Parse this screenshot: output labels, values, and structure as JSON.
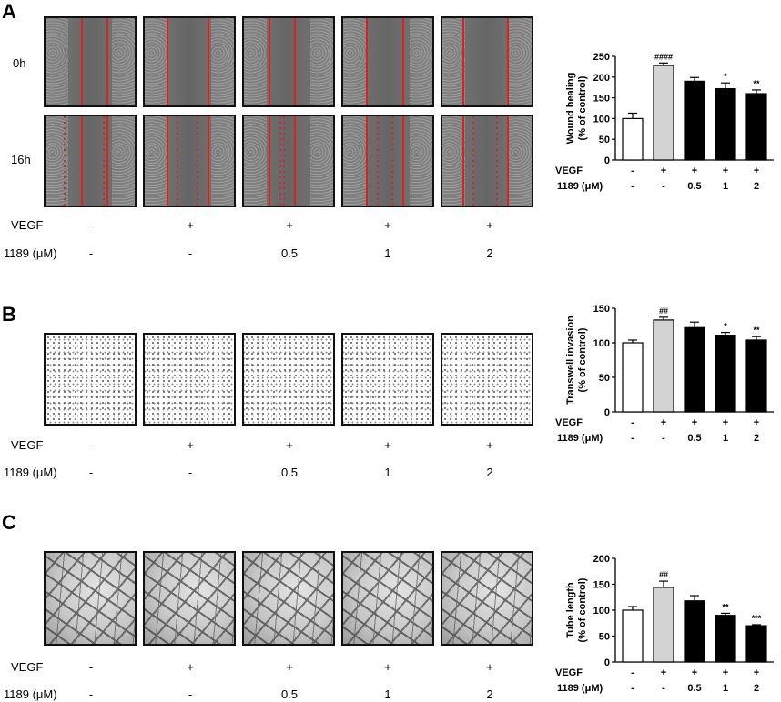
{
  "panels": [
    {
      "letter": "A",
      "row_labels": [
        "0h",
        "16h"
      ],
      "conditions": {
        "vegf_label": "VEGF",
        "dose_label": "1189 (μM)",
        "vegf": [
          "-",
          "+",
          "+",
          "+",
          "+"
        ],
        "dose": [
          "-",
          "-",
          "0.5",
          "1",
          "2"
        ]
      }
    },
    {
      "letter": "B",
      "conditions": {
        "vegf_label": "VEGF",
        "dose_label": "1189 (μM)",
        "vegf": [
          "-",
          "+",
          "+",
          "+",
          "+"
        ],
        "dose": [
          "-",
          "-",
          "0.5",
          "1",
          "2"
        ]
      }
    },
    {
      "letter": "C",
      "conditions": {
        "vegf_label": "VEGF",
        "dose_label": "1189 (μM)",
        "vegf": [
          "-",
          "+",
          "+",
          "+",
          "+"
        ],
        "dose": [
          "-",
          "-",
          "0.5",
          "1",
          "2"
        ]
      }
    }
  ],
  "chart_data": [
    {
      "type": "bar",
      "ylabel_line1": "Wound healing",
      "ylabel_line2": "(% of control)",
      "ylim": [
        0,
        250
      ],
      "yticks": [
        "0",
        "50",
        "100",
        "150",
        "200",
        "250"
      ],
      "values": [
        100,
        228,
        190,
        172,
        160
      ],
      "errors": [
        13,
        6,
        9,
        14,
        9
      ],
      "fills": [
        "#ffffff",
        "#d3d3d3",
        "#000000",
        "#000000",
        "#000000"
      ],
      "significance": [
        "",
        "####",
        "",
        "*",
        "**"
      ],
      "row1_label": "VEGF",
      "row2_label": "1189 (μM)",
      "row1": [
        "-",
        "+",
        "+",
        "+",
        "+"
      ],
      "row2": [
        "-",
        "-",
        "0.5",
        "1",
        "2"
      ]
    },
    {
      "type": "bar",
      "ylabel_line1": "Transwell invasion",
      "ylabel_line2": "(% of control)",
      "ylim": [
        0,
        150
      ],
      "yticks": [
        "0",
        "50",
        "100",
        "150"
      ],
      "values": [
        100,
        133,
        122,
        111,
        104
      ],
      "errors": [
        4,
        4,
        8,
        4,
        5
      ],
      "fills": [
        "#ffffff",
        "#d3d3d3",
        "#000000",
        "#000000",
        "#000000"
      ],
      "significance": [
        "",
        "##",
        "",
        "*",
        "**"
      ],
      "row1_label": "VEGF",
      "row2_label": "1189 (μM)",
      "row1": [
        "-",
        "+",
        "+",
        "+",
        "+"
      ],
      "row2": [
        "-",
        "-",
        "0.5",
        "1",
        "2"
      ]
    },
    {
      "type": "bar",
      "ylabel_line1": "Tube length",
      "ylabel_line2": "(% of control)",
      "ylim": [
        0,
        200
      ],
      "yticks": [
        "0",
        "50",
        "100",
        "150",
        "200"
      ],
      "values": [
        100,
        144,
        118,
        90,
        70
      ],
      "errors": [
        7,
        12,
        10,
        4,
        2
      ],
      "fills": [
        "#ffffff",
        "#d3d3d3",
        "#000000",
        "#000000",
        "#000000"
      ],
      "significance": [
        "",
        "##",
        "",
        "**",
        "***"
      ],
      "row1_label": "VEGF",
      "row2_label": "1189 (μM)",
      "row1": [
        "-",
        "+",
        "+",
        "+",
        "+"
      ],
      "row2": [
        "-",
        "-",
        "0.5",
        "1",
        "2"
      ]
    }
  ]
}
